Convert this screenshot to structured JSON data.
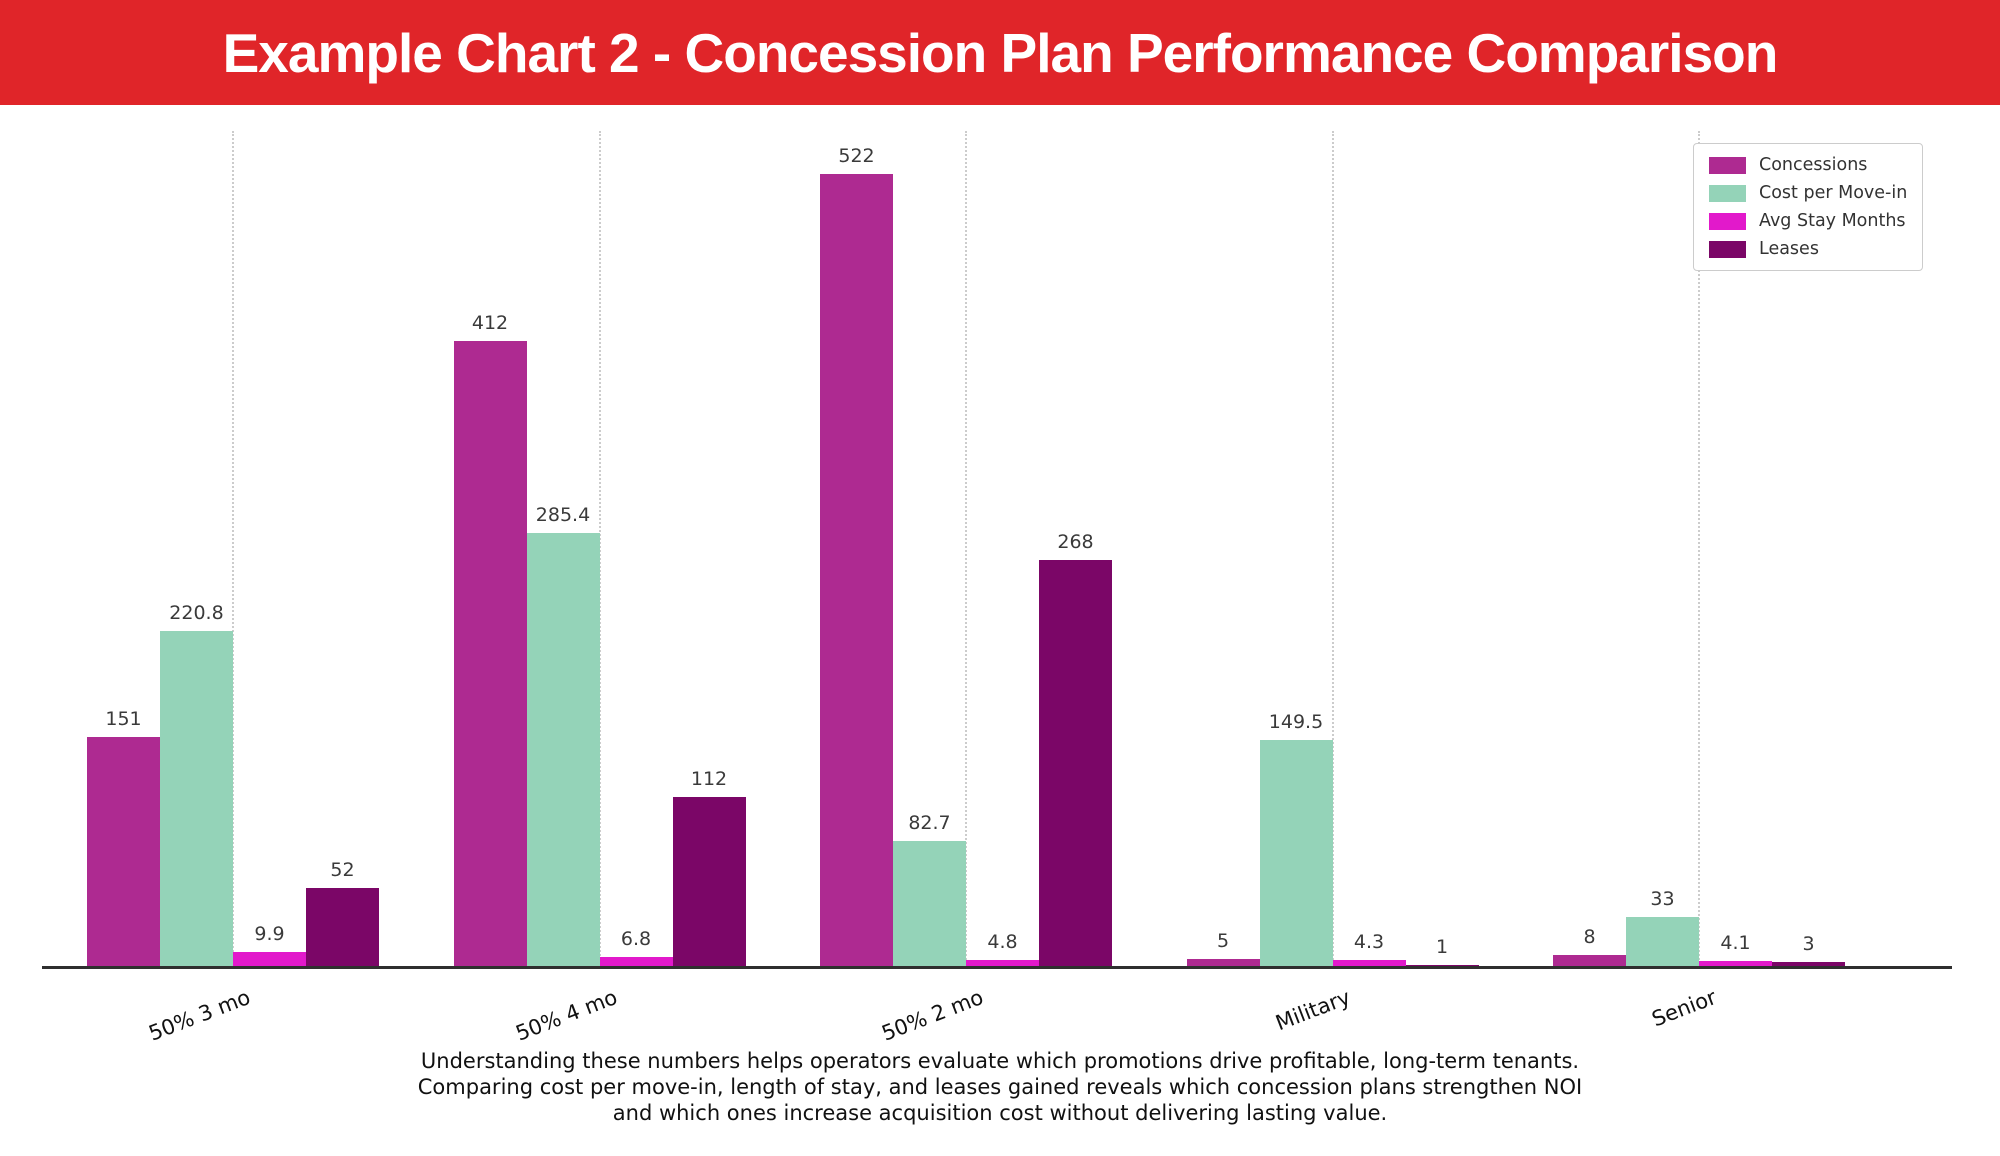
{
  "header": {
    "title": "Example Chart 2 - Concession Plan Performance Comparison",
    "background": "#e02529",
    "text_color": "#ffffff"
  },
  "chart_data": {
    "type": "bar",
    "title": "",
    "xlabel": "",
    "ylabel": "",
    "categories": [
      "50% 3 mo",
      "50% 4 mo",
      "50% 2 mo",
      "Military",
      "Senior"
    ],
    "series": [
      {
        "name": "Concessions",
        "color": "#ae2a91",
        "values": [
          151,
          412,
          522,
          5,
          8
        ],
        "labels": [
          "151",
          "412",
          "522",
          "5",
          "8"
        ]
      },
      {
        "name": "Cost per Move-in",
        "color": "#94d3b8",
        "values": [
          220.8,
          285.4,
          82.7,
          149.5,
          33
        ],
        "labels": [
          "220.8",
          "285.4",
          "82.7",
          "149.5",
          "33"
        ]
      },
      {
        "name": "Avg Stay Months",
        "color": "#e219cb",
        "values": [
          9.9,
          6.8,
          4.8,
          4.3,
          4.1
        ],
        "labels": [
          "9.9",
          "6.8",
          "4.8",
          "4.3",
          "4.1"
        ]
      },
      {
        "name": "Leases",
        "color": "#7b0667",
        "values": [
          52,
          112,
          268,
          1,
          3
        ],
        "labels": [
          "52",
          "112",
          "268",
          "1",
          "3"
        ]
      }
    ],
    "ylim": [
      0,
      550
    ],
    "grid": "vertical-dotted",
    "legend_position": "upper-right"
  },
  "caption": {
    "lines": [
      "Understanding these numbers helps operators evaluate which promotions drive profitable, long-term tenants.",
      "Comparing cost per move-in, length of stay, and leases gained reveals which concession plans strengthen NOI",
      "and which ones increase acquisition cost without delivering lasting value."
    ]
  },
  "colors": {
    "axis": "#2f2f2f",
    "grid": "#cccccc",
    "value_label": "#3a3a3a",
    "tick_label": "#111111",
    "caption_text": "#111111",
    "legend_border": "#cccccc",
    "legend_text": "#333333",
    "page_background": "#ffffff"
  }
}
